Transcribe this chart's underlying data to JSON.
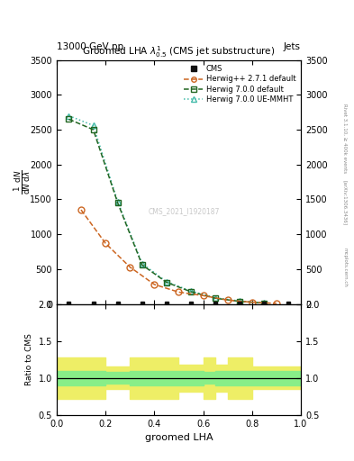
{
  "title": "Groomed LHA $\\lambda^{1}_{0.5}$ (CMS jet substructure)",
  "top_left_label": "13000 GeV pp",
  "top_right_label": "Jets",
  "ylabel_ratio": "Ratio to CMS",
  "xlabel": "groomed LHA",
  "watermark": "CMS_2021_I1920187",
  "rivet_label": "Rivet 3.1.10, ≥ 400k events",
  "arxiv_label": "[arXiv:1306.3436]",
  "mcplots_label": "mcplots.cern.ch",
  "cms_x": [
    0.05,
    0.15,
    0.25,
    0.35,
    0.45,
    0.55,
    0.65,
    0.75,
    0.85,
    0.95
  ],
  "cms_y": [
    2,
    2,
    2,
    2,
    2,
    2,
    2,
    2,
    2,
    2
  ],
  "herwig_pp_x": [
    0.1,
    0.2,
    0.3,
    0.4,
    0.5,
    0.6,
    0.7,
    0.8,
    0.9
  ],
  "herwig_pp_y": [
    1350,
    870,
    530,
    280,
    170,
    120,
    55,
    25,
    8
  ],
  "herwig7_def_x": [
    0.05,
    0.15,
    0.25,
    0.35,
    0.45,
    0.55,
    0.65,
    0.75,
    0.85
  ],
  "herwig7_def_y": [
    2650,
    2500,
    1450,
    560,
    310,
    175,
    82,
    37,
    13
  ],
  "herwig7_ue_x": [
    0.05,
    0.15,
    0.25,
    0.35,
    0.45,
    0.55,
    0.65,
    0.75,
    0.85
  ],
  "herwig7_ue_y": [
    2700,
    2560,
    1470,
    580,
    320,
    185,
    88,
    43,
    15
  ],
  "cms_color": "#111111",
  "herwig_pp_color": "#cc6622",
  "herwig7_def_color": "#226622",
  "herwig7_ue_color": "#44bbaa",
  "ratio_band_green_color": "#88ee88",
  "ratio_band_yellow_color": "#eeee66",
  "xlim": [
    0,
    1
  ],
  "ylim_main": [
    0,
    3500
  ],
  "ylim_ratio": [
    0.5,
    2.0
  ],
  "main_yticks": [
    0,
    500,
    1000,
    1500,
    2000,
    2500,
    3000,
    3500
  ],
  "ratio_yticks": [
    0.5,
    1.0,
    1.5,
    2.0
  ],
  "ratio_step_x": [
    0.0,
    0.1,
    0.2,
    0.3,
    0.4,
    0.5,
    0.6,
    0.65,
    0.7,
    0.8,
    1.0
  ],
  "ratio_green_upper": [
    1.1,
    1.1,
    1.08,
    1.1,
    1.1,
    1.1,
    1.08,
    1.1,
    1.1,
    1.1,
    1.1
  ],
  "ratio_green_lower": [
    0.9,
    0.9,
    0.92,
    0.9,
    0.9,
    0.9,
    0.92,
    0.9,
    0.9,
    0.9,
    0.9
  ],
  "ratio_yellow_upper": [
    1.28,
    1.28,
    1.15,
    1.28,
    1.28,
    1.18,
    1.28,
    1.18,
    1.28,
    1.15,
    1.15
  ],
  "ratio_yellow_lower": [
    0.72,
    0.72,
    0.85,
    0.72,
    0.72,
    0.82,
    0.72,
    0.82,
    0.72,
    0.85,
    0.85
  ]
}
